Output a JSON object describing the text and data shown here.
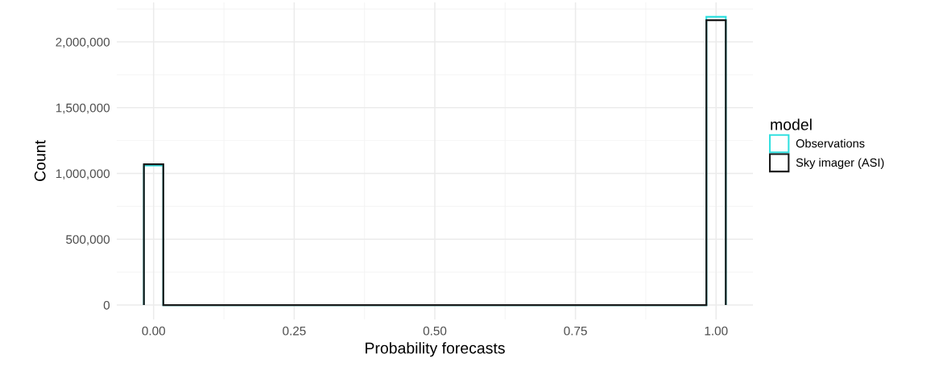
{
  "chart_data": {
    "type": "histogram",
    "xlabel": "Probability forecasts",
    "ylabel": "Count",
    "legend_title": "model",
    "bins": [
      -0.01724,
      0.01724,
      0.05172,
      0.08621,
      0.12069,
      0.15517,
      0.18966,
      0.22414,
      0.25862,
      0.2931,
      0.32759,
      0.36207,
      0.39655,
      0.43103,
      0.46552,
      0.5,
      0.53448,
      0.56897,
      0.60345,
      0.63793,
      0.67241,
      0.7069,
      0.74138,
      0.77586,
      0.81034,
      0.84483,
      0.87931,
      0.91379,
      0.94828,
      0.98276,
      1.01724
    ],
    "series": [
      {
        "name": "Observations",
        "color": "#33e0e0",
        "values": [
          1060000,
          0,
          0,
          0,
          0,
          0,
          0,
          0,
          0,
          0,
          0,
          0,
          0,
          0,
          0,
          0,
          0,
          0,
          0,
          0,
          0,
          0,
          0,
          0,
          0,
          0,
          0,
          0,
          0,
          2190000
        ]
      },
      {
        "name": "Sky imager (ASI)",
        "color": "#1a1a1a",
        "values": [
          1070000,
          0,
          0,
          0,
          0,
          0,
          0,
          0,
          0,
          0,
          0,
          0,
          0,
          0,
          0,
          0,
          0,
          0,
          0,
          0,
          0,
          0,
          0,
          0,
          0,
          0,
          0,
          0,
          0,
          2165000
        ]
      }
    ],
    "xlim": [
      -0.0655,
      1.0655
    ],
    "ylim": [
      -110000,
      2300000
    ],
    "xticks": [
      {
        "value": 0,
        "label": "0.00"
      },
      {
        "value": 0.25,
        "label": "0.25"
      },
      {
        "value": 0.5,
        "label": "0.50"
      },
      {
        "value": 0.75,
        "label": "0.75"
      },
      {
        "value": 1,
        "label": "1.00"
      }
    ],
    "yticks": [
      0,
      {
        "value": 500000,
        "label": "500,000"
      },
      {
        "value": 1000000,
        "label": "1,000,000"
      },
      {
        "value": 1500000,
        "label": "1,500,000"
      },
      {
        "value": 2000000,
        "label": "2,000,000"
      }
    ],
    "grid": true,
    "legend": "right"
  }
}
